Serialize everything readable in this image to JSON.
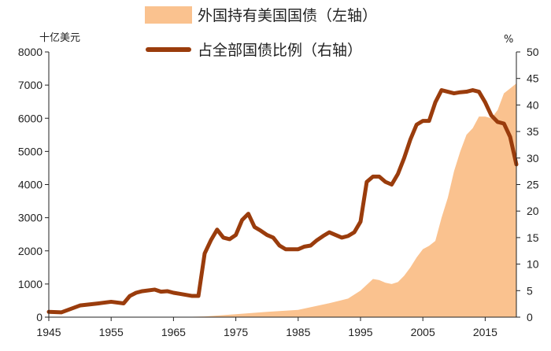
{
  "chart_data": {
    "type": "line",
    "title": "",
    "left_unit": "十亿美元",
    "right_unit": "%",
    "x_range": [
      1945,
      2020
    ],
    "x_ticks": [
      1945,
      1955,
      1965,
      1975,
      1985,
      1995,
      2005,
      2015
    ],
    "left_ylim": [
      0,
      8000
    ],
    "left_ticks": [
      0,
      1000,
      2000,
      3000,
      4000,
      5000,
      6000,
      7000,
      8000
    ],
    "right_ylim": [
      0,
      50
    ],
    "right_ticks": [
      0,
      5,
      10,
      15,
      20,
      25,
      30,
      35,
      40,
      45,
      50
    ],
    "grid": false,
    "legend_position": "top",
    "series": [
      {
        "name": "外国持有美国国债（左轴）",
        "kind": "area",
        "axis": "left",
        "color": "#FAC28F",
        "x": [
          1945,
          1965,
          1970,
          1975,
          1980,
          1985,
          1990,
          1993,
          1995,
          1997,
          1998,
          1999,
          2000,
          2001,
          2002,
          2003,
          2004,
          2005,
          2006,
          2007,
          2008,
          2009,
          2010,
          2011,
          2012,
          2013,
          2014,
          2015,
          2016,
          2017,
          2018,
          2019,
          2020
        ],
        "y": [
          0,
          0,
          20,
          90,
          160,
          220,
          420,
          560,
          800,
          1150,
          1120,
          1040,
          1000,
          1060,
          1250,
          1500,
          1800,
          2050,
          2150,
          2300,
          3000,
          3600,
          4400,
          5000,
          5500,
          5700,
          6050,
          6050,
          6000,
          6250,
          6750,
          6900,
          7050
        ]
      },
      {
        "name": "占全部国债比例（右轴）",
        "kind": "line",
        "axis": "right",
        "color": "#9A3C0C",
        "x": [
          1945,
          1947,
          1950,
          1953,
          1955,
          1957,
          1958,
          1959,
          1960,
          1962,
          1963,
          1964,
          1965,
          1966,
          1967,
          1968,
          1969,
          1970,
          1971,
          1972,
          1973,
          1974,
          1975,
          1976,
          1977,
          1978,
          1979,
          1980,
          1981,
          1982,
          1983,
          1984,
          1985,
          1986,
          1987,
          1988,
          1989,
          1990,
          1991,
          1992,
          1993,
          1994,
          1995,
          1996,
          1997,
          1998,
          1999,
          2000,
          2001,
          2002,
          2003,
          2004,
          2005,
          2006,
          2007,
          2008,
          2009,
          2010,
          2011,
          2012,
          2013,
          2014,
          2015,
          2016,
          2017,
          2018,
          2019,
          2020
        ],
        "y": [
          1.0,
          0.9,
          2.2,
          2.6,
          2.9,
          2.6,
          4.0,
          4.6,
          4.9,
          5.2,
          4.8,
          4.9,
          4.6,
          4.4,
          4.2,
          4.0,
          4.0,
          12.0,
          14.5,
          16.5,
          15.0,
          14.7,
          15.5,
          18.3,
          19.5,
          17.0,
          16.3,
          15.5,
          15.0,
          13.5,
          12.8,
          12.8,
          12.8,
          13.3,
          13.5,
          14.5,
          15.3,
          16.0,
          15.5,
          15.0,
          15.3,
          16.0,
          18.0,
          25.5,
          26.5,
          26.5,
          25.5,
          25.0,
          27.0,
          30.0,
          33.5,
          36.3,
          37.0,
          37.0,
          40.5,
          42.8,
          42.5,
          42.2,
          42.4,
          42.5,
          42.8,
          42.5,
          40.5,
          38.0,
          36.8,
          36.5,
          34.0,
          28.8
        ]
      }
    ]
  }
}
